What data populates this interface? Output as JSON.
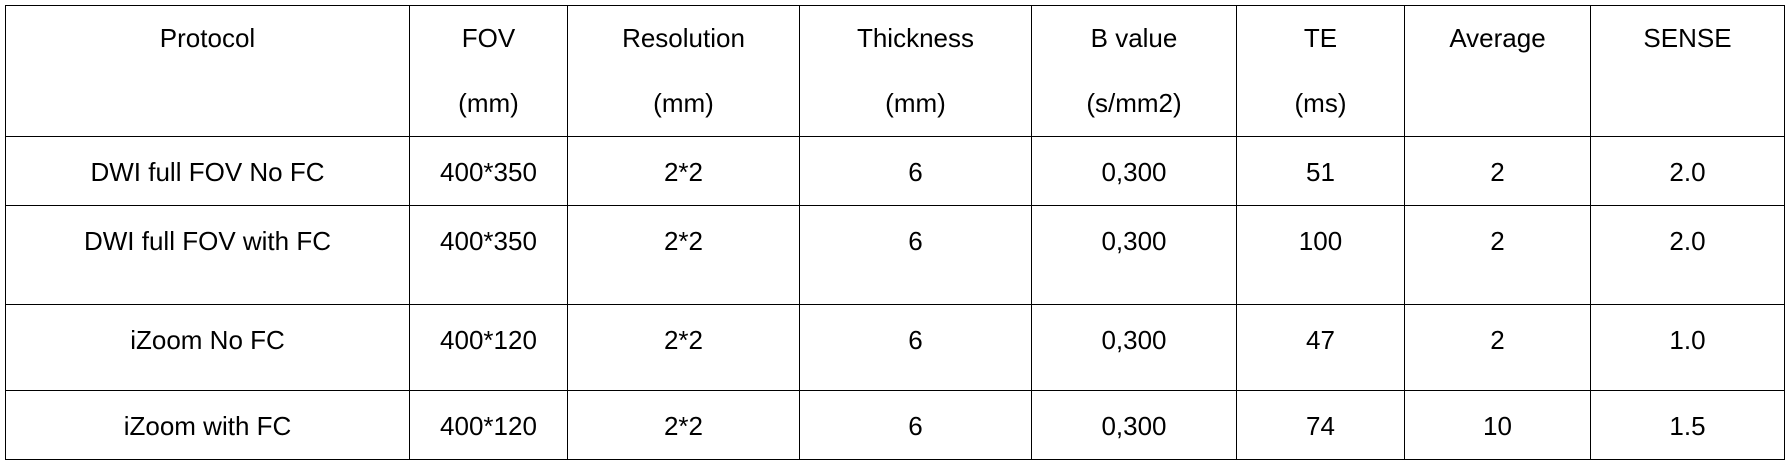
{
  "table": {
    "header": [
      [
        "Protocol"
      ],
      [
        "FOV",
        "(mm)"
      ],
      [
        "Resolution",
        "(mm)"
      ],
      [
        "Thickness",
        "(mm)"
      ],
      [
        "B value",
        "(s/mm2)"
      ],
      [
        "TE",
        "(ms)"
      ],
      [
        "Average"
      ],
      [
        "SENSE"
      ]
    ],
    "rows": [
      [
        "DWI full FOV No FC",
        "400*350",
        "2*2",
        "6",
        "0,300",
        "51",
        "2",
        "2.0"
      ],
      [
        "DWI full FOV with FC",
        "400*350",
        "2*2",
        "6",
        "0,300",
        "100",
        "2",
        "2.0"
      ],
      [
        "iZoom No FC",
        "400*120",
        "2*2",
        "6",
        "0,300",
        "47",
        "2",
        "1.0"
      ],
      [
        "iZoom with FC",
        "400*120",
        "2*2",
        "6",
        "0,300",
        "74",
        "10",
        "1.5"
      ]
    ]
  }
}
